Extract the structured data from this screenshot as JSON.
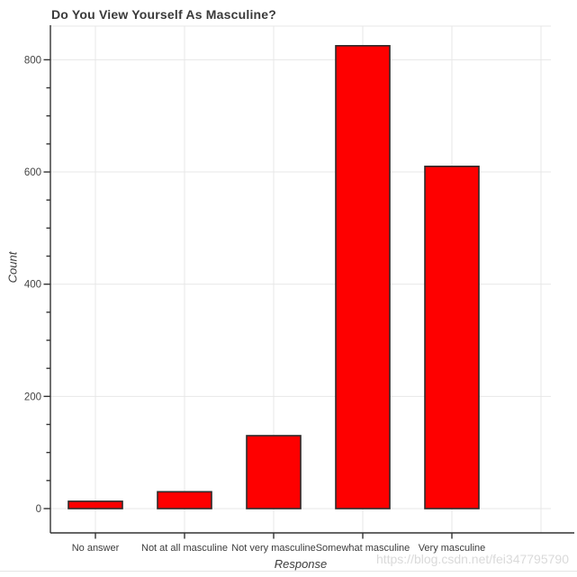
{
  "page": {
    "watermark": "https://blog.csdn.net/fei347795790"
  },
  "chart_data": {
    "type": "bar",
    "title": "Do You View Yourself As Masculine?",
    "xlabel": "Response",
    "ylabel": "Count",
    "categories": [
      "No answer",
      "Not at all masculine",
      "Not very masculine",
      "Somewhat masculine",
      "Very masculine"
    ],
    "values": [
      13,
      30,
      130,
      825,
      610
    ],
    "ylim": [
      0,
      860
    ],
    "yticks": [
      0,
      200,
      400,
      600,
      800
    ],
    "ytick_minor_step": 50,
    "grid": true,
    "legend": "none",
    "colors": {
      "bar_fill": "#FE0000",
      "bar_border": "#2b2b2b",
      "grid_line": "#e7e7e7",
      "axis_line": "#333333",
      "tick_label": "#444444",
      "title_text": "#3a3a3a",
      "watermark_text": "#dadada"
    }
  }
}
